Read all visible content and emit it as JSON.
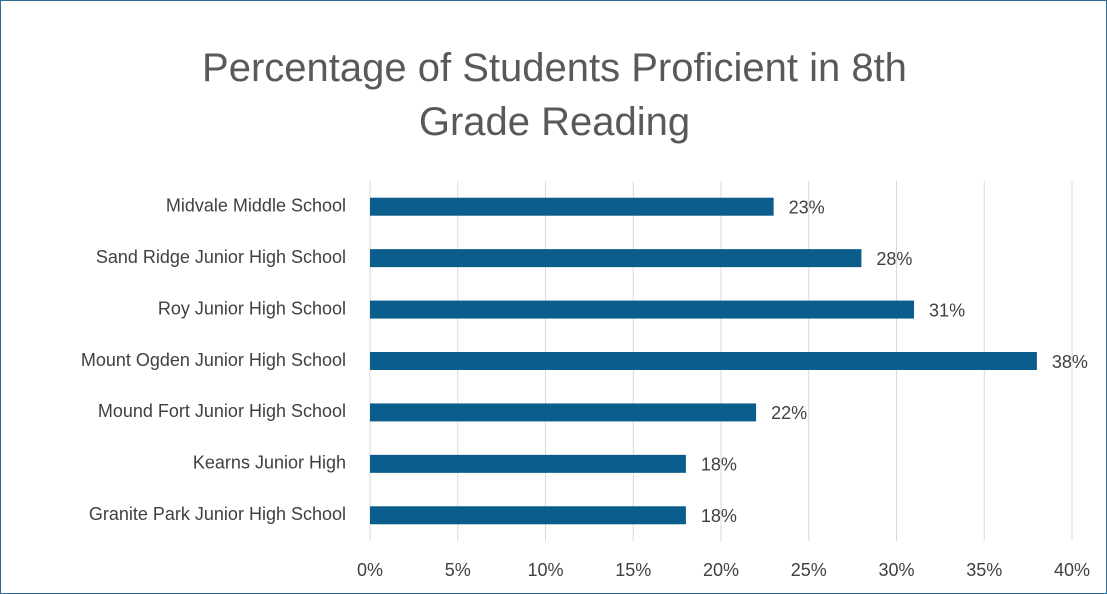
{
  "chart_data": {
    "type": "bar",
    "orientation": "horizontal",
    "title": "Percentage of Students Proficient in 8th Grade Reading",
    "categories": [
      "Midvale Middle School",
      "Sand Ridge Junior High School",
      "Roy Junior High School",
      "Mount Ogden Junior High School",
      "Mound Fort Junior High School",
      "Kearns Junior High",
      "Granite Park Junior High School"
    ],
    "values": [
      23,
      28,
      31,
      38,
      22,
      18,
      18
    ],
    "value_labels": [
      "23%",
      "28%",
      "31%",
      "38%",
      "22%",
      "18%",
      "18%"
    ],
    "color": "#0b5e8c",
    "xlim": [
      0,
      40
    ],
    "xticks": [
      {
        "value": 0,
        "label": "0%"
      },
      {
        "value": 5,
        "label": "5%"
      },
      {
        "value": 10,
        "label": "10%"
      },
      {
        "value": 15,
        "label": "15%"
      },
      {
        "value": 20,
        "label": "20%"
      },
      {
        "value": 25,
        "label": "25%"
      },
      {
        "value": 30,
        "label": "30%"
      },
      {
        "value": 35,
        "label": "35%"
      },
      {
        "value": 40,
        "label": "40%"
      }
    ],
    "grid": true
  }
}
